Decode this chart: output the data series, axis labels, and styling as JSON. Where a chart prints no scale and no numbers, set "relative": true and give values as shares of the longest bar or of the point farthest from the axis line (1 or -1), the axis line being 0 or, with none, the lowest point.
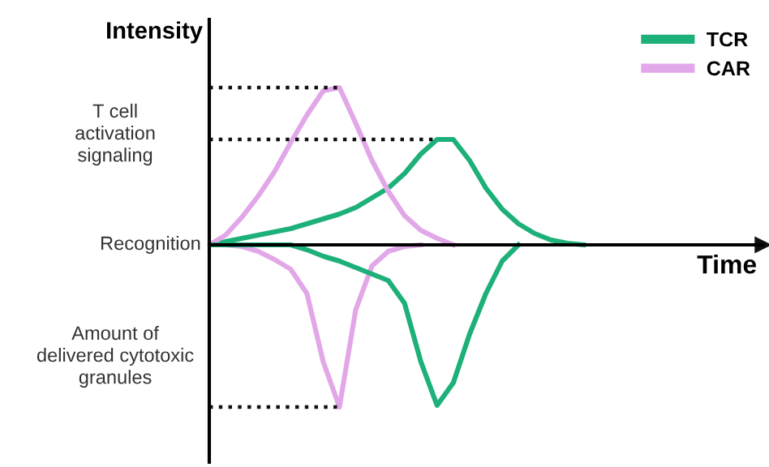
{
  "chart_data": {
    "type": "line",
    "relative": true,
    "xlabel": "Time",
    "ylabel": "Intensity",
    "categories": [
      null,
      null,
      null,
      null,
      null,
      null,
      null,
      null,
      null,
      null,
      null,
      null,
      null,
      null,
      null,
      null,
      null,
      null,
      null,
      null,
      null,
      null,
      null,
      null,
      null,
      null,
      null,
      null,
      null,
      null,
      null,
      null,
      null,
      null,
      null
    ],
    "series": [
      {
        "name": "TCR",
        "color": "#1db079",
        "values": [
          0,
          0.02,
          0.04,
          0.06,
          0.08,
          0.1,
          0.13,
          0.16,
          0.19,
          0.23,
          0.29,
          0.35,
          0.44,
          0.56,
          0.65,
          0.65,
          0.52,
          0.35,
          0.22,
          0.13,
          0.07,
          0.03,
          0.01,
          0,
          null,
          null,
          null,
          null,
          null,
          null,
          null,
          null,
          null,
          null,
          null
        ]
      },
      {
        "name": "CAR",
        "color": "#e2a7e8",
        "values": [
          0,
          0.06,
          0.17,
          0.3,
          0.45,
          0.63,
          0.8,
          0.95,
          0.97,
          0.75,
          0.52,
          0.33,
          0.18,
          0.09,
          0.04,
          0,
          null,
          null,
          null,
          null,
          null,
          null,
          null,
          null,
          null,
          null,
          null,
          null,
          null,
          null,
          null,
          null,
          null,
          null,
          null
        ]
      },
      {
        "color": "#e2a7e8",
        "values": [
          0,
          0,
          -0.01,
          -0.04,
          -0.09,
          -0.15,
          -0.3,
          -0.72,
          -1,
          -0.4,
          -0.13,
          -0.04,
          -0.01,
          0,
          null,
          null,
          null,
          null,
          null,
          null,
          null,
          null,
          null,
          null,
          null,
          null,
          null,
          null,
          null,
          null,
          null,
          null,
          null,
          null,
          null
        ]
      },
      {
        "color": "#1db079",
        "values": [
          0,
          0,
          0,
          0,
          0,
          0,
          -0.03,
          -0.07,
          -0.1,
          -0.14,
          -0.18,
          -0.22,
          -0.36,
          -0.72,
          -0.99,
          -0.85,
          -0.55,
          -0.3,
          -0.1,
          0,
          null,
          null,
          null,
          null,
          null,
          null,
          null,
          null,
          null,
          null,
          null,
          null,
          null,
          null,
          null
        ]
      }
    ],
    "ref_lines": [
      {
        "axis": "y",
        "value": 0.97,
        "line_style": "dotted",
        "color": "#111111"
      },
      {
        "axis": "y",
        "value": 0.65,
        "line_style": "dotted",
        "color": "#111111"
      },
      {
        "axis": "y",
        "value": -1,
        "line_style": "dotted",
        "color": "#111111"
      }
    ],
    "annotations": [
      "T cell\nactivation\nsignaling",
      "Recognition",
      "Amount of\ndelivered cytotoxic\ngranules"
    ],
    "legend": "top right",
    "marker": "none",
    "line_style": "solid"
  }
}
